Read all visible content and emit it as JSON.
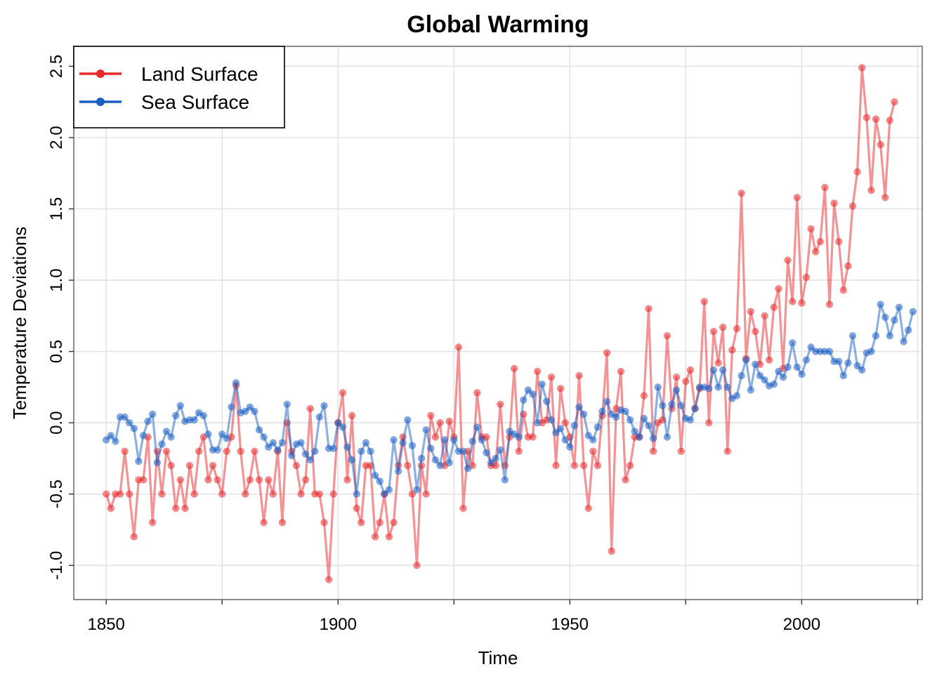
{
  "chart_data": {
    "type": "line",
    "title": "Global Warming",
    "xlabel": "Time",
    "ylabel": "Temperature Deviations",
    "xlim": [
      1843,
      2026
    ],
    "ylim": [
      -1.24,
      2.64
    ],
    "x_ticks": [
      1850,
      1900,
      1950,
      2000
    ],
    "x_minor_ticks": [
      1875,
      1925,
      1975,
      2025
    ],
    "y_ticks": [
      -1.0,
      -0.5,
      0.0,
      0.5,
      1.0,
      1.5,
      2.0,
      2.5
    ],
    "x_tick_labels": [
      "1850",
      "1900",
      "1950",
      "2000"
    ],
    "y_tick_labels": [
      "-1.0",
      "-0.5",
      "0.0",
      "0.5",
      "1.0",
      "1.5",
      "2.0",
      "2.5"
    ],
    "grid": true,
    "legend": {
      "position": "top-left",
      "entries": [
        "Land Surface",
        "Sea Surface"
      ]
    },
    "x_start": 1850,
    "series": [
      {
        "name": "Land Surface",
        "color": "#e8282b",
        "values": [
          -0.5,
          -0.6,
          -0.5,
          -0.5,
          -0.2,
          -0.5,
          -0.8,
          -0.4,
          -0.4,
          -0.1,
          -0.7,
          -0.2,
          -0.5,
          -0.2,
          -0.3,
          -0.6,
          -0.4,
          -0.6,
          -0.3,
          -0.5,
          -0.2,
          -0.1,
          -0.4,
          -0.3,
          -0.4,
          -0.5,
          -0.2,
          -0.1,
          0.26,
          -0.2,
          -0.5,
          -0.4,
          -0.2,
          -0.4,
          -0.7,
          -0.4,
          -0.5,
          -0.2,
          -0.7,
          0.0,
          -0.2,
          -0.3,
          -0.5,
          -0.4,
          0.1,
          -0.5,
          -0.5,
          -0.7,
          -1.1,
          -0.5,
          0.0,
          0.21,
          -0.4,
          0.05,
          -0.6,
          -0.7,
          -0.3,
          -0.3,
          -0.8,
          -0.7,
          -0.5,
          -0.8,
          -0.7,
          -0.3,
          -0.1,
          -0.3,
          -0.5,
          -1.0,
          -0.3,
          -0.5,
          0.05,
          -0.1,
          0.0,
          -0.3,
          0.01,
          -0.1,
          0.53,
          -0.6,
          -0.2,
          -0.3,
          0.21,
          -0.1,
          -0.1,
          -0.3,
          -0.3,
          0.13,
          -0.3,
          -0.1,
          0.38,
          -0.2,
          0.06,
          -0.1,
          -0.1,
          0.36,
          0.0,
          0.02,
          0.32,
          -0.3,
          0.24,
          0.0,
          -0.1,
          -0.3,
          0.33,
          -0.3,
          -0.6,
          -0.2,
          -0.3,
          0.05,
          0.49,
          -0.9,
          0.1,
          0.36,
          -0.4,
          -0.3,
          -0.1,
          -0.1,
          0.19,
          0.8,
          -0.2,
          0.0,
          0.02,
          0.61,
          0.1,
          0.32,
          -0.2,
          0.29,
          0.37,
          0.1,
          0.24,
          0.85,
          0.0,
          0.64,
          0.42,
          0.67,
          -0.2,
          0.51,
          0.66,
          1.61,
          0.45,
          0.78,
          0.64,
          0.41,
          0.75,
          0.44,
          0.81,
          0.94,
          0.38,
          1.14,
          0.85,
          1.58,
          0.84,
          1.02,
          1.36,
          1.2,
          1.27,
          1.65,
          0.83,
          1.54,
          1.27,
          0.93,
          1.1,
          1.52,
          1.76,
          2.49,
          2.14,
          1.63,
          2.13,
          1.95,
          1.58,
          2.12,
          2.25
        ]
      },
      {
        "name": "Sea Surface",
        "color": "#1c5fc4",
        "values": [
          -0.12,
          -0.09,
          -0.13,
          0.04,
          0.04,
          0.0,
          -0.04,
          -0.27,
          -0.09,
          0.01,
          0.06,
          -0.28,
          -0.15,
          -0.06,
          -0.1,
          0.05,
          0.12,
          0.01,
          0.02,
          0.02,
          0.07,
          0.05,
          -0.08,
          -0.19,
          -0.19,
          -0.08,
          -0.11,
          0.11,
          0.28,
          0.07,
          0.08,
          0.11,
          0.08,
          -0.05,
          -0.1,
          -0.17,
          -0.14,
          -0.19,
          -0.14,
          0.13,
          -0.23,
          -0.15,
          -0.14,
          -0.22,
          -0.26,
          -0.2,
          0.04,
          0.12,
          -0.18,
          -0.18,
          0.0,
          -0.03,
          -0.17,
          -0.26,
          -0.5,
          -0.2,
          -0.14,
          -0.2,
          -0.37,
          -0.41,
          -0.5,
          -0.47,
          -0.12,
          -0.34,
          -0.14,
          0.02,
          -0.16,
          -0.47,
          -0.25,
          -0.05,
          -0.18,
          -0.26,
          -0.3,
          -0.12,
          -0.28,
          -0.12,
          -0.2,
          -0.2,
          -0.32,
          -0.13,
          -0.03,
          -0.12,
          -0.21,
          -0.28,
          -0.25,
          -0.19,
          -0.4,
          -0.06,
          -0.08,
          -0.1,
          0.16,
          0.23,
          0.2,
          0.0,
          0.27,
          0.15,
          0.02,
          -0.07,
          -0.04,
          -0.12,
          -0.17,
          -0.02,
          0.11,
          0.06,
          -0.09,
          -0.12,
          -0.03,
          0.08,
          0.15,
          0.06,
          0.04,
          0.09,
          0.08,
          0.02,
          -0.06,
          -0.1,
          0.03,
          -0.02,
          -0.11,
          0.25,
          0.12,
          -0.1,
          0.13,
          0.23,
          0.12,
          0.03,
          0.02,
          0.1,
          0.25,
          0.25,
          0.24,
          0.37,
          0.25,
          0.37,
          0.25,
          0.17,
          0.19,
          0.33,
          0.44,
          0.23,
          0.41,
          0.33,
          0.3,
          0.26,
          0.27,
          0.36,
          0.32,
          0.39,
          0.56,
          0.39,
          0.34,
          0.44,
          0.53,
          0.5,
          0.5,
          0.5,
          0.5,
          0.43,
          0.43,
          0.33,
          0.42,
          0.61,
          0.4,
          0.37,
          0.49,
          0.5,
          0.61,
          0.83,
          0.74,
          0.61,
          0.72,
          0.81,
          0.57,
          0.65,
          0.78
        ]
      }
    ]
  }
}
